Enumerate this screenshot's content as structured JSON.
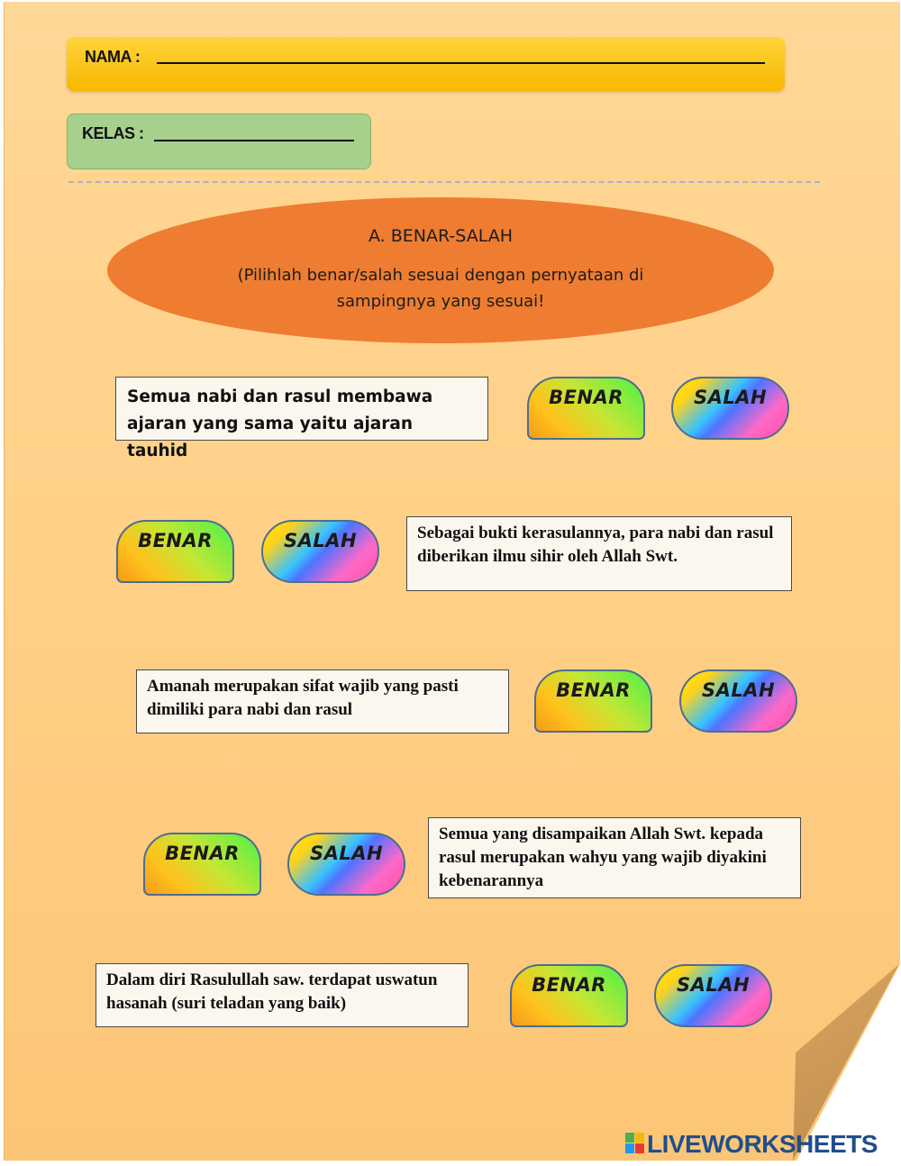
{
  "form": {
    "nama_label": "NAMA :",
    "kelas_label": "KELAS :"
  },
  "section": {
    "title": "A. BENAR-SALAH",
    "instruction": "(Pilihlah benar/salah sesuai dengan pernyataan di sampingnya yang sesuai!"
  },
  "buttons": {
    "benar_label": "BENAR",
    "salah_label": "SALAH"
  },
  "questions": [
    {
      "text": "Semua nabi dan rasul membawa ajaran yang sama yaitu ajaran tauhid"
    },
    {
      "text": "Sebagai bukti kerasulannya, para nabi dan rasul diberikan ilmu sihir oleh Allah Swt."
    },
    {
      "text": "Amanah merupakan sifat wajib yang pasti dimiliki para nabi dan rasul"
    },
    {
      "text": "Semua yang disampaikan Allah Swt. kepada rasul merupakan wahyu yang wajib diyakini kebenarannya"
    },
    {
      "text": "Dalam diri Rasulullah saw. terdapat uswatun hasanah (suri teladan yang baik)"
    }
  ],
  "brand": {
    "name": "LIVEWORKSHEETS"
  },
  "colors": {
    "paper": "#ffd796",
    "name_bar": "#ffc000",
    "class_bar": "#a8d08d",
    "oval": "#ee7d31",
    "brand": "#1f4e8c"
  }
}
